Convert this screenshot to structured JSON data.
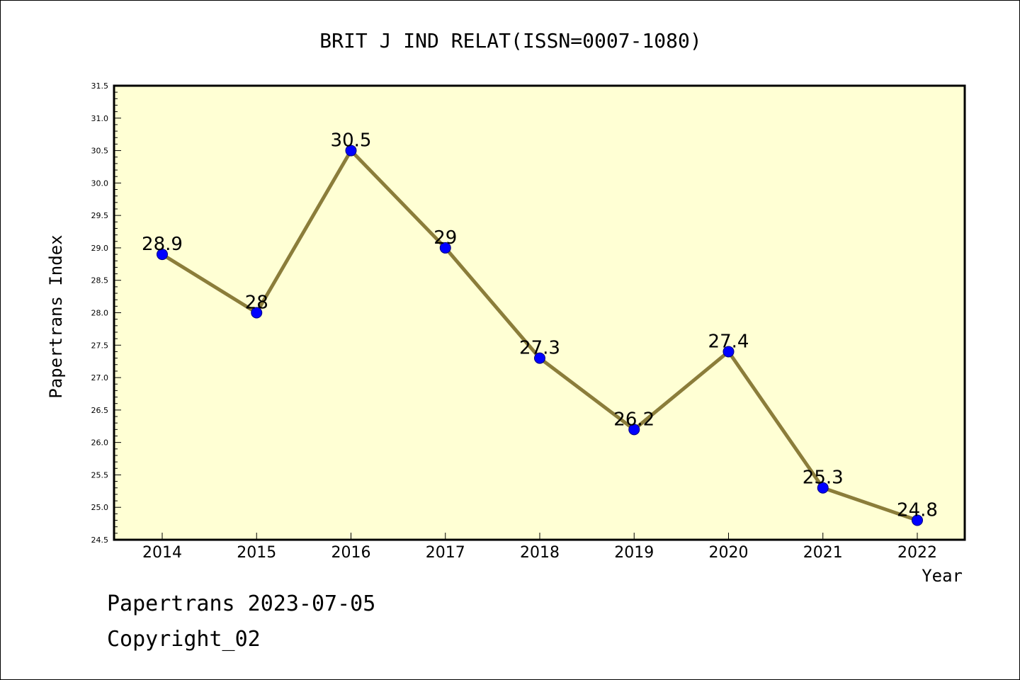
{
  "chart_data": {
    "type": "line",
    "title": "BRIT J IND RELAT(ISSN=0007-1080)",
    "xlabel": "Year",
    "ylabel": "Papertrans Index",
    "categories": [
      "2014",
      "2015",
      "2016",
      "2017",
      "2018",
      "2019",
      "2020",
      "2021",
      "2022"
    ],
    "values": [
      28.9,
      28,
      30.5,
      29,
      27.3,
      26.2,
      27.4,
      25.3,
      24.8
    ],
    "data_labels": [
      "28.9",
      "28",
      "30.5",
      "29",
      "27.3",
      "26.2",
      "27.4",
      "25.3",
      "24.8"
    ],
    "ylim": [
      24.5,
      31.5
    ],
    "yticks": [
      "24.5",
      "25.0",
      "25.5",
      "26.0",
      "26.5",
      "27.0",
      "27.5",
      "28.0",
      "28.5",
      "29.0",
      "29.5",
      "30.0",
      "30.5",
      "31.0",
      "31.5"
    ],
    "grid": false,
    "legend": "none",
    "colors": {
      "plot_background": "#ffffd4",
      "line": "#8b7d3a",
      "marker": "#0000ff",
      "marker_edge": "#000080"
    }
  },
  "footer": {
    "line1": "Papertrans 2023-07-05",
    "line2": "Copyright_02"
  }
}
